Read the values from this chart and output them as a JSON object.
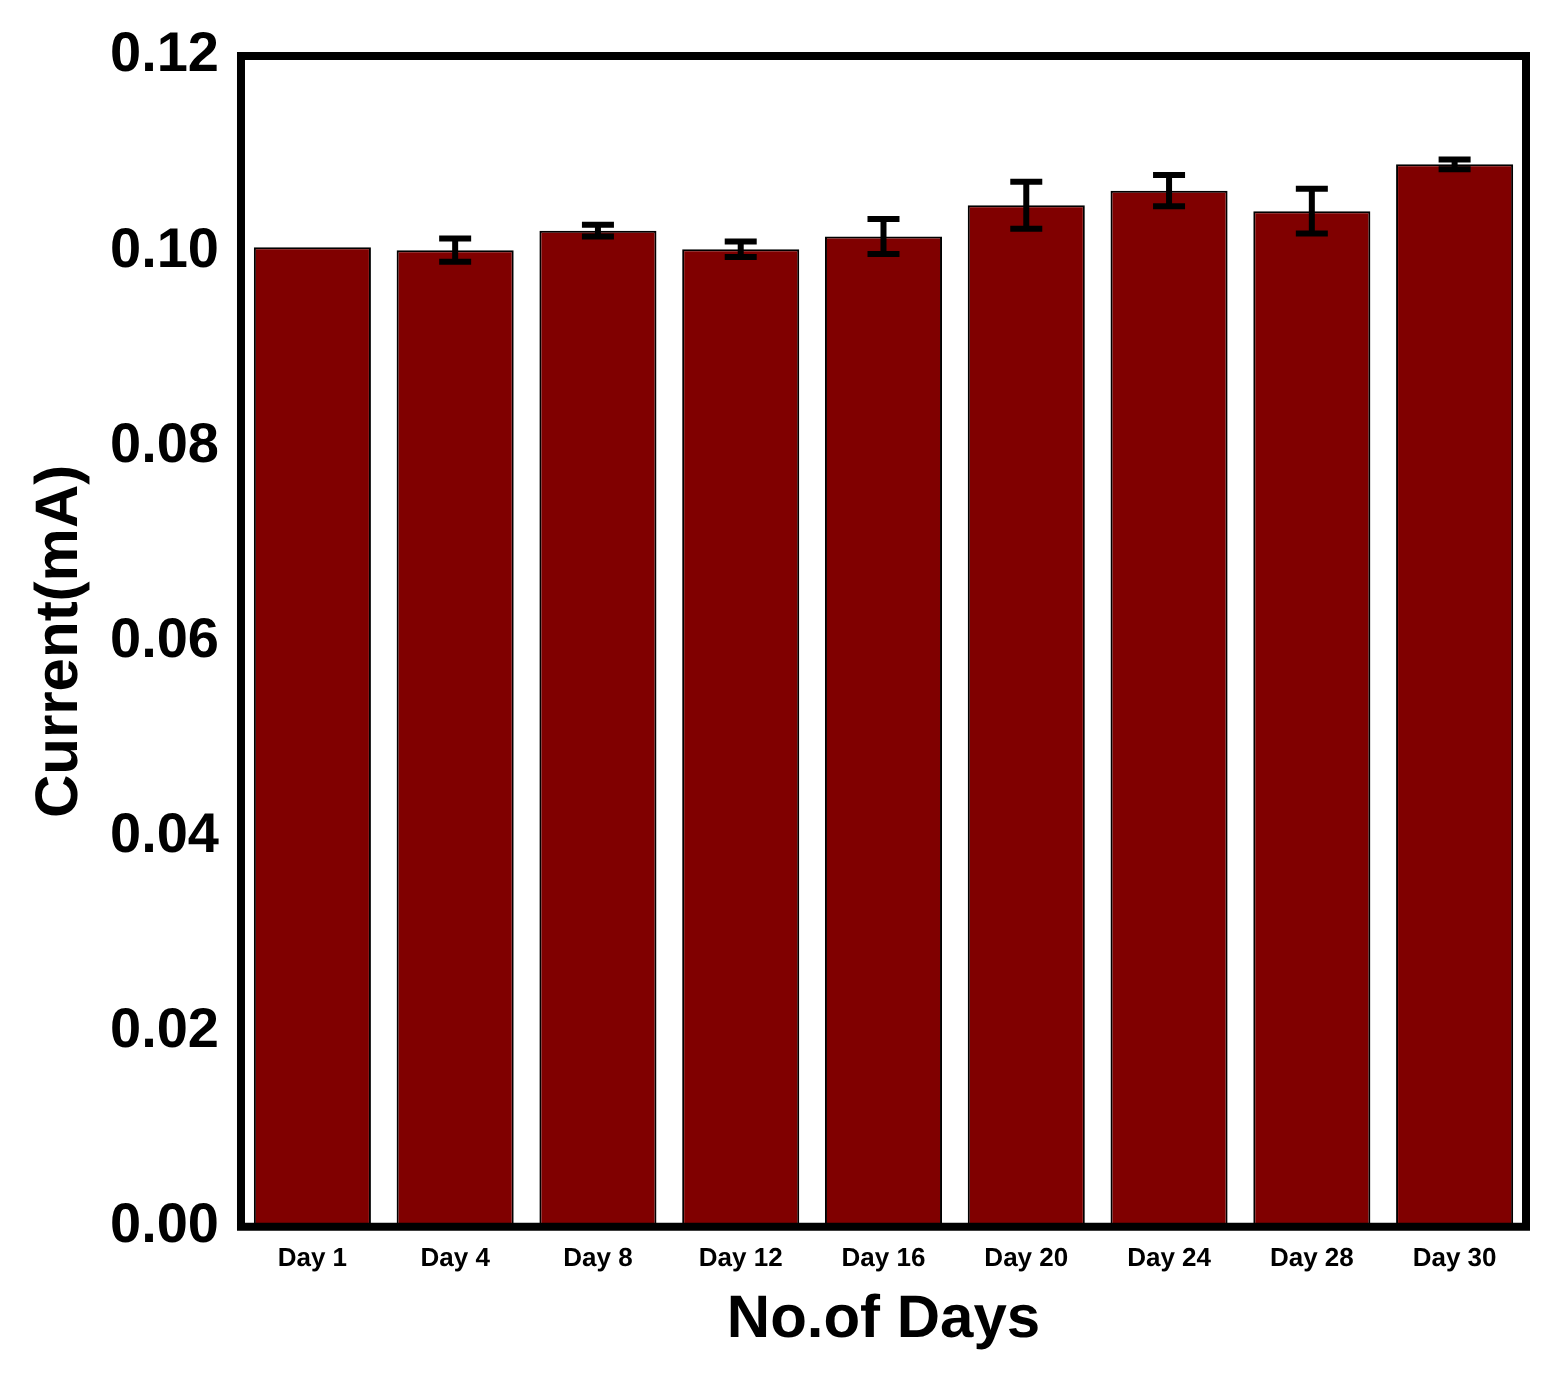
{
  "chart_data": {
    "type": "bar",
    "xlabel": "No.of Days",
    "ylabel": "Current(mA)",
    "categories": [
      "Day 1",
      "Day 4",
      "Day 8",
      "Day 12",
      "Day 16",
      "Day 20",
      "Day 24",
      "Day 28",
      "Day 30"
    ],
    "values": [
      0.1004,
      0.1001,
      0.1021,
      0.1002,
      0.1015,
      0.1047,
      0.1062,
      0.1041,
      0.1089
    ],
    "errors": [
      null,
      0.0012,
      0.0006,
      0.0008,
      0.0018,
      0.0024,
      0.0016,
      0.0023,
      0.0005
    ],
    "color": "#800000",
    "ylim": [
      0,
      0.12
    ],
    "yticks": [
      {
        "value": 0,
        "label": "0.00"
      },
      {
        "value": 0.02,
        "label": "0.02"
      },
      {
        "value": 0.04,
        "label": "0.04"
      },
      {
        "value": 0.06,
        "label": "0.06"
      },
      {
        "value": 0.08,
        "label": "0.08"
      },
      {
        "value": 0.1,
        "label": "0.10"
      },
      {
        "value": 0.12,
        "label": "0.12"
      }
    ],
    "grid": false,
    "legend": false
  }
}
